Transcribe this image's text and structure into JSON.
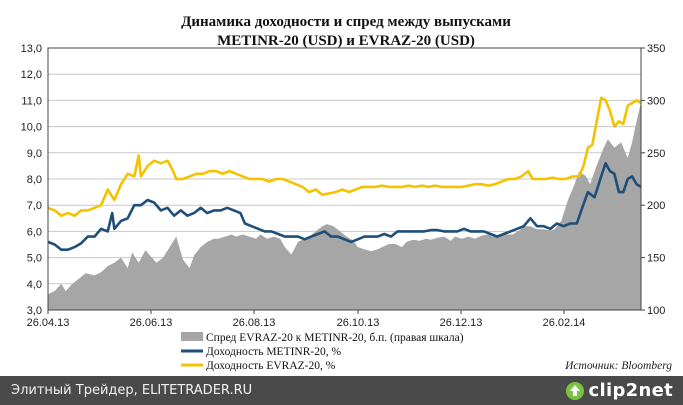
{
  "chart_data": {
    "type": "line",
    "title_line1": "Динамика доходности и спред между выпусками",
    "title_line2": "METINR-20 (USD) и EVRAZ-20 (USD)",
    "x_tick_labels": [
      "26.04.13",
      "26.06.13",
      "26.08.13",
      "26.10.13",
      "26.12.13",
      "26.02.14"
    ],
    "y_left_ticks": [
      "3,0",
      "4,0",
      "5,0",
      "6,0",
      "7,0",
      "8,0",
      "9,0",
      "10,0",
      "11,0",
      "12,0",
      "13,0"
    ],
    "y_right_ticks": [
      "100",
      "150",
      "200",
      "250",
      "300",
      "350"
    ],
    "ylim_left": [
      3,
      13
    ],
    "ylim_right": [
      100,
      350
    ],
    "grid": true,
    "legend_placement": "bottom",
    "source_text": "Источник: Bloomberg",
    "colors": {
      "spread": "#a6a6a6",
      "metinr": "#1f4e79",
      "evraz": "#f5c200"
    },
    "series": [
      {
        "name": "Спред EVRAZ-20 к METINR-20, б.п. (правая шкала)",
        "kind": "area",
        "axis": "right",
        "points": [
          [
            0,
            115
          ],
          [
            3,
            118
          ],
          [
            6,
            125
          ],
          [
            8,
            118
          ],
          [
            11,
            125
          ],
          [
            14,
            130
          ],
          [
            17,
            135
          ],
          [
            21,
            133
          ],
          [
            24,
            136
          ],
          [
            27,
            142
          ],
          [
            30,
            145
          ],
          [
            33,
            150
          ],
          [
            36,
            140
          ],
          [
            38,
            155
          ],
          [
            41,
            145
          ],
          [
            44,
            157
          ],
          [
            47,
            150
          ],
          [
            49,
            145
          ],
          [
            52,
            150
          ],
          [
            55,
            160
          ],
          [
            58,
            170
          ],
          [
            61,
            148
          ],
          [
            64,
            140
          ],
          [
            66,
            152
          ],
          [
            69,
            160
          ],
          [
            72,
            165
          ],
          [
            75,
            168
          ],
          [
            77,
            168
          ],
          [
            80,
            170
          ],
          [
            83,
            172
          ],
          [
            85,
            170
          ],
          [
            88,
            172
          ],
          [
            91,
            170
          ],
          [
            94,
            168
          ],
          [
            96,
            172
          ],
          [
            99,
            168
          ],
          [
            102,
            170
          ],
          [
            105,
            168
          ],
          [
            107,
            160
          ],
          [
            110,
            153
          ],
          [
            113,
            165
          ],
          [
            116,
            168
          ],
          [
            118,
            170
          ],
          [
            121,
            175
          ],
          [
            124,
            180
          ],
          [
            126,
            182
          ],
          [
            129,
            180
          ],
          [
            132,
            175
          ],
          [
            135,
            170
          ],
          [
            138,
            166
          ],
          [
            140,
            160
          ],
          [
            143,
            158
          ],
          [
            146,
            156
          ],
          [
            149,
            158
          ],
          [
            151,
            160
          ],
          [
            154,
            163
          ],
          [
            157,
            163
          ],
          [
            160,
            160
          ],
          [
            162,
            165
          ],
          [
            165,
            167
          ],
          [
            168,
            166
          ],
          [
            171,
            168
          ],
          [
            173,
            167
          ],
          [
            176,
            169
          ],
          [
            179,
            170
          ],
          [
            182,
            166
          ],
          [
            184,
            170
          ],
          [
            187,
            168
          ],
          [
            190,
            170
          ],
          [
            193,
            168
          ],
          [
            196,
            171
          ],
          [
            199,
            172
          ],
          [
            201,
            170
          ],
          [
            204,
            172
          ],
          [
            207,
            172
          ],
          [
            210,
            172
          ],
          [
            213,
            176
          ],
          [
            215,
            180
          ],
          [
            218,
            180
          ],
          [
            221,
            177
          ],
          [
            224,
            177
          ],
          [
            227,
            176
          ],
          [
            229,
            177
          ],
          [
            232,
            185
          ],
          [
            235,
            205
          ],
          [
            238,
            220
          ],
          [
            240,
            232
          ],
          [
            243,
            228
          ],
          [
            245,
            220
          ],
          [
            248,
            238
          ],
          [
            251,
            254
          ],
          [
            253,
            263
          ],
          [
            256,
            255
          ],
          [
            259,
            260
          ],
          [
            262,
            245
          ],
          [
            264,
            260
          ],
          [
            266,
            280
          ],
          [
            268,
            298
          ]
        ]
      },
      {
        "name": "Доходность METINR-20, %",
        "kind": "line",
        "axis": "left",
        "points": [
          [
            0,
            5.6
          ],
          [
            3,
            5.5
          ],
          [
            6,
            5.3
          ],
          [
            9,
            5.3
          ],
          [
            12,
            5.4
          ],
          [
            15,
            5.55
          ],
          [
            18,
            5.8
          ],
          [
            21,
            5.8
          ],
          [
            24,
            6.1
          ],
          [
            27,
            6.0
          ],
          [
            29,
            6.7
          ],
          [
            30,
            6.1
          ],
          [
            33,
            6.4
          ],
          [
            36,
            6.5
          ],
          [
            39,
            7.0
          ],
          [
            42,
            7.0
          ],
          [
            45,
            7.2
          ],
          [
            48,
            7.1
          ],
          [
            51,
            6.8
          ],
          [
            54,
            6.9
          ],
          [
            57,
            6.6
          ],
          [
            60,
            6.8
          ],
          [
            63,
            6.6
          ],
          [
            66,
            6.7
          ],
          [
            69,
            6.9
          ],
          [
            72,
            6.7
          ],
          [
            75,
            6.8
          ],
          [
            78,
            6.8
          ],
          [
            81,
            6.9
          ],
          [
            84,
            6.8
          ],
          [
            87,
            6.7
          ],
          [
            89,
            6.3
          ],
          [
            92,
            6.2
          ],
          [
            95,
            6.1
          ],
          [
            98,
            6.0
          ],
          [
            101,
            6.0
          ],
          [
            104,
            5.9
          ],
          [
            107,
            5.8
          ],
          [
            110,
            5.8
          ],
          [
            113,
            5.8
          ],
          [
            116,
            5.7
          ],
          [
            119,
            5.8
          ],
          [
            122,
            5.9
          ],
          [
            125,
            6.0
          ],
          [
            128,
            5.8
          ],
          [
            131,
            5.8
          ],
          [
            134,
            5.7
          ],
          [
            137,
            5.6
          ],
          [
            140,
            5.7
          ],
          [
            143,
            5.8
          ],
          [
            146,
            5.8
          ],
          [
            149,
            5.8
          ],
          [
            152,
            5.9
          ],
          [
            155,
            5.8
          ],
          [
            158,
            6.0
          ],
          [
            161,
            6.0
          ],
          [
            164,
            6.0
          ],
          [
            167,
            6.0
          ],
          [
            170,
            6.0
          ],
          [
            173,
            6.05
          ],
          [
            176,
            6.05
          ],
          [
            179,
            6.0
          ],
          [
            182,
            6.0
          ],
          [
            185,
            6.0
          ],
          [
            188,
            6.1
          ],
          [
            191,
            6.0
          ],
          [
            194,
            6.0
          ],
          [
            197,
            6.0
          ],
          [
            200,
            5.9
          ],
          [
            203,
            5.8
          ],
          [
            206,
            5.9
          ],
          [
            209,
            6.0
          ],
          [
            212,
            6.1
          ],
          [
            215,
            6.2
          ],
          [
            218,
            6.5
          ],
          [
            221,
            6.2
          ],
          [
            224,
            6.2
          ],
          [
            227,
            6.1
          ],
          [
            230,
            6.3
          ],
          [
            233,
            6.2
          ],
          [
            236,
            6.3
          ],
          [
            239,
            6.3
          ],
          [
            241,
            6.8
          ],
          [
            244,
            7.5
          ],
          [
            247,
            7.3
          ],
          [
            250,
            8.1
          ],
          [
            252,
            8.6
          ],
          [
            254,
            8.3
          ],
          [
            256,
            8.2
          ],
          [
            258,
            7.5
          ],
          [
            260,
            7.5
          ],
          [
            262,
            8.0
          ],
          [
            264,
            8.1
          ],
          [
            266,
            7.8
          ],
          [
            268,
            7.7
          ]
        ]
      },
      {
        "name": "Доходность EVRAZ-20, %",
        "kind": "line",
        "axis": "left",
        "points": [
          [
            0,
            6.9
          ],
          [
            3,
            6.8
          ],
          [
            6,
            6.6
          ],
          [
            9,
            6.7
          ],
          [
            12,
            6.6
          ],
          [
            15,
            6.8
          ],
          [
            18,
            6.8
          ],
          [
            21,
            6.9
          ],
          [
            24,
            7.0
          ],
          [
            27,
            7.6
          ],
          [
            30,
            7.2
          ],
          [
            33,
            7.8
          ],
          [
            36,
            8.2
          ],
          [
            39,
            8.1
          ],
          [
            41,
            8.9
          ],
          [
            42,
            8.1
          ],
          [
            45,
            8.5
          ],
          [
            48,
            8.7
          ],
          [
            51,
            8.6
          ],
          [
            54,
            8.7
          ],
          [
            56,
            8.4
          ],
          [
            58,
            8.0
          ],
          [
            61,
            8.0
          ],
          [
            64,
            8.1
          ],
          [
            67,
            8.2
          ],
          [
            70,
            8.2
          ],
          [
            73,
            8.3
          ],
          [
            76,
            8.3
          ],
          [
            79,
            8.2
          ],
          [
            82,
            8.3
          ],
          [
            85,
            8.2
          ],
          [
            88,
            8.1
          ],
          [
            91,
            8.0
          ],
          [
            94,
            8.0
          ],
          [
            97,
            8.0
          ],
          [
            100,
            7.9
          ],
          [
            103,
            8.0
          ],
          [
            106,
            8.0
          ],
          [
            109,
            7.9
          ],
          [
            112,
            7.8
          ],
          [
            115,
            7.7
          ],
          [
            118,
            7.5
          ],
          [
            121,
            7.6
          ],
          [
            124,
            7.4
          ],
          [
            127,
            7.45
          ],
          [
            130,
            7.5
          ],
          [
            133,
            7.6
          ],
          [
            136,
            7.5
          ],
          [
            139,
            7.6
          ],
          [
            142,
            7.7
          ],
          [
            145,
            7.7
          ],
          [
            148,
            7.7
          ],
          [
            151,
            7.75
          ],
          [
            154,
            7.7
          ],
          [
            157,
            7.7
          ],
          [
            160,
            7.7
          ],
          [
            163,
            7.75
          ],
          [
            166,
            7.7
          ],
          [
            169,
            7.75
          ],
          [
            172,
            7.7
          ],
          [
            175,
            7.75
          ],
          [
            178,
            7.7
          ],
          [
            181,
            7.7
          ],
          [
            184,
            7.7
          ],
          [
            187,
            7.7
          ],
          [
            190,
            7.75
          ],
          [
            193,
            7.8
          ],
          [
            196,
            7.8
          ],
          [
            199,
            7.75
          ],
          [
            202,
            7.8
          ],
          [
            205,
            7.9
          ],
          [
            208,
            8.0
          ],
          [
            211,
            8.0
          ],
          [
            214,
            8.1
          ],
          [
            217,
            8.3
          ],
          [
            219,
            8.0
          ],
          [
            222,
            8.0
          ],
          [
            225,
            8.0
          ],
          [
            228,
            8.05
          ],
          [
            231,
            8.0
          ],
          [
            234,
            8.0
          ],
          [
            237,
            8.1
          ],
          [
            240,
            8.1
          ],
          [
            242,
            8.5
          ],
          [
            244,
            9.2
          ],
          [
            246,
            9.3
          ],
          [
            248,
            10.2
          ],
          [
            250,
            11.1
          ],
          [
            252,
            11.0
          ],
          [
            254,
            10.6
          ],
          [
            256,
            10.0
          ],
          [
            258,
            10.2
          ],
          [
            260,
            10.1
          ],
          [
            262,
            10.8
          ],
          [
            264,
            10.9
          ],
          [
            266,
            11.0
          ],
          [
            268,
            10.9
          ]
        ]
      }
    ]
  },
  "legend": {
    "spread": "Спред EVRAZ-20 к METINR-20, б.п. (правая шкала)",
    "metinr": "Доходность METINR-20, %",
    "evraz": "Доходность EVRAZ-20, %"
  },
  "footer": {
    "left_text": "Элитный Трейдер, ELITETRADER.RU",
    "brand": "clip2net",
    "brand_icon": "upload-arrow-icon"
  }
}
